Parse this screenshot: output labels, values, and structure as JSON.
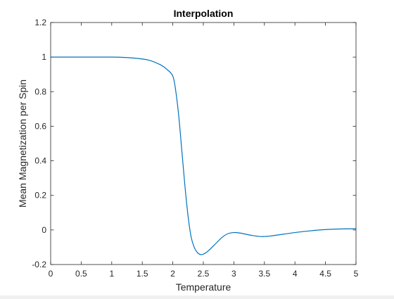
{
  "chart_data": {
    "type": "line",
    "title": "Interpolation",
    "xlabel": "Temperature",
    "ylabel": "Mean Magnetization per Spin",
    "xlim": [
      0,
      5
    ],
    "ylim": [
      -0.2,
      1.2
    ],
    "xticks": [
      0,
      0.5,
      1,
      1.5,
      2,
      2.5,
      3,
      3.5,
      4,
      4.5,
      5
    ],
    "xtick_labels": [
      "0",
      "0.5",
      "1",
      "1.5",
      "2",
      "2.5",
      "3",
      "3.5",
      "4",
      "4.5",
      "5"
    ],
    "yticks": [
      -0.2,
      0,
      0.2,
      0.4,
      0.6,
      0.8,
      1,
      1.2
    ],
    "ytick_labels": [
      "-0.2",
      "0",
      "0.2",
      "0.4",
      "0.6",
      "0.8",
      "1",
      "1.2"
    ],
    "grid": false,
    "line_color": "#0072BD",
    "series": [
      {
        "x": [
          0,
          0.5,
          1.0,
          1.2,
          1.4,
          1.6,
          1.8,
          1.9,
          2.0,
          2.05,
          2.1,
          2.15,
          2.2,
          2.25,
          2.3,
          2.35,
          2.4,
          2.45,
          2.5,
          2.55,
          2.6,
          2.7,
          2.8,
          2.9,
          3.0,
          3.1,
          3.2,
          3.3,
          3.4,
          3.5,
          3.6,
          3.8,
          4.0,
          4.2,
          4.4,
          4.6,
          4.8,
          5.0
        ],
        "y": [
          1.0,
          1.0,
          1.0,
          0.998,
          0.993,
          0.983,
          0.955,
          0.93,
          0.89,
          0.8,
          0.65,
          0.45,
          0.25,
          0.08,
          -0.04,
          -0.1,
          -0.13,
          -0.142,
          -0.14,
          -0.13,
          -0.115,
          -0.08,
          -0.045,
          -0.022,
          -0.015,
          -0.018,
          -0.025,
          -0.032,
          -0.037,
          -0.038,
          -0.035,
          -0.025,
          -0.015,
          -0.007,
          0.0,
          0.004,
          0.006,
          0.007
        ]
      }
    ]
  }
}
